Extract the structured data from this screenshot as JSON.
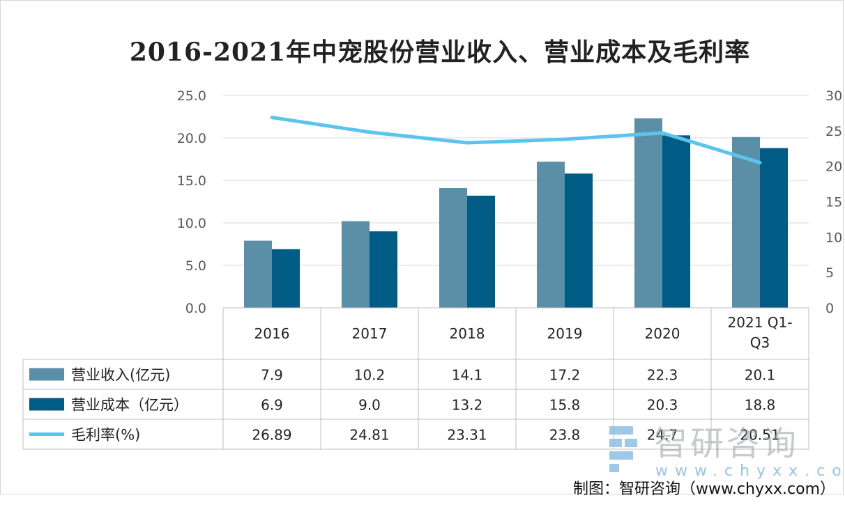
{
  "chart_data": {
    "type": "bar",
    "title": "2016-2021年中宠股份营业收入、营业成本及毛利率",
    "categories": [
      "2016",
      "2017",
      "2018",
      "2019",
      "2020",
      "2021  Q1-Q3"
    ],
    "category_lines": [
      [
        "2016"
      ],
      [
        "2017"
      ],
      [
        "2018"
      ],
      [
        "2019"
      ],
      [
        "2020"
      ],
      [
        "2021  Q1-",
        "Q3"
      ]
    ],
    "left_axis": {
      "ylim": [
        0,
        25
      ],
      "ticks": [
        "0.0",
        "5.0",
        "10.0",
        "15.0",
        "20.0",
        "25.0"
      ]
    },
    "right_axis": {
      "ylim": [
        0,
        30
      ],
      "ticks": [
        "0",
        "5",
        "10",
        "15",
        "20",
        "25",
        "30"
      ]
    },
    "series": [
      {
        "name": "营业收入(亿元)",
        "kind": "bar",
        "axis": "left",
        "color": "#5b8fa8",
        "values": [
          7.9,
          10.2,
          14.1,
          17.2,
          22.3,
          20.1
        ],
        "labels": [
          "7.9",
          "10.2",
          "14.1",
          "17.2",
          "22.3",
          "20.1"
        ]
      },
      {
        "name": "营业成本（亿元）",
        "kind": "bar",
        "axis": "left",
        "color": "#005b85",
        "values": [
          6.9,
          9.0,
          13.2,
          15.8,
          20.3,
          18.8
        ],
        "labels": [
          "6.9",
          "9.0",
          "13.2",
          "15.8",
          "20.3",
          "18.8"
        ]
      },
      {
        "name": "毛利率(%)",
        "kind": "line",
        "axis": "right",
        "color": "#5bc4ee",
        "values": [
          26.89,
          24.81,
          23.31,
          23.8,
          24.7,
          20.51
        ],
        "labels": [
          "26.89",
          "24.81",
          "23.31",
          "23.8",
          "24.7",
          "20.51"
        ]
      }
    ],
    "data_table": true,
    "legend": "in data table",
    "grid": true
  },
  "watermark": {
    "text": "智研咨询",
    "url": "www.chyxx.com"
  },
  "credit": "制图：智研咨询（www.chyxx.com）"
}
